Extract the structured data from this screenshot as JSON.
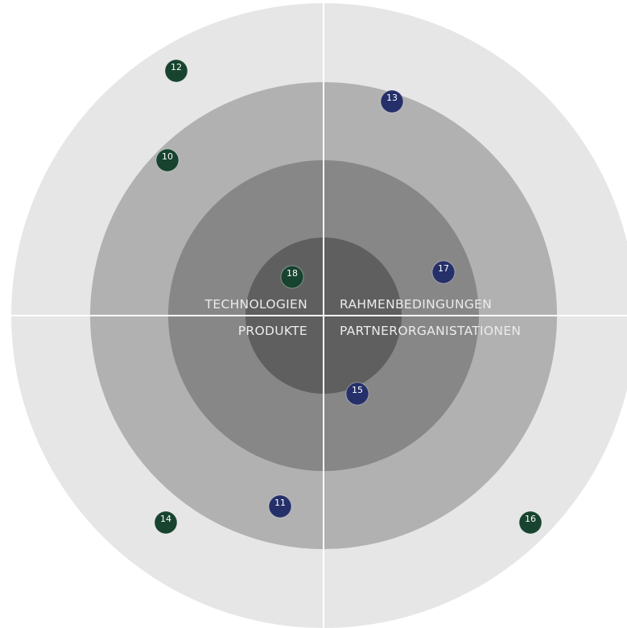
{
  "quadrants": [
    {
      "key": "top-left",
      "label": "TECHNOLOGIEN"
    },
    {
      "key": "top-right",
      "label": "RAHMENBEDINGUNGEN"
    },
    {
      "key": "bottom-left",
      "label": "PRODUKTE"
    },
    {
      "key": "bottom-right",
      "label": "PARTNERORGANISTATIONEN"
    }
  ],
  "rings": {
    "colors": [
      "#5f5f5f",
      "#878787",
      "#b1b1b1",
      "#e6e6e6"
    ]
  },
  "divider_color": "#ffffff",
  "blip_colors": {
    "green": "#17432f",
    "navy": "#25306a"
  },
  "blips": [
    {
      "number": "10",
      "color": "green"
    },
    {
      "number": "11",
      "color": "navy"
    },
    {
      "number": "12",
      "color": "green"
    },
    {
      "number": "13",
      "color": "navy"
    },
    {
      "number": "14",
      "color": "green"
    },
    {
      "number": "15",
      "color": "navy"
    },
    {
      "number": "16",
      "color": "green"
    },
    {
      "number": "17",
      "color": "navy"
    },
    {
      "number": "18",
      "color": "green"
    }
  ]
}
